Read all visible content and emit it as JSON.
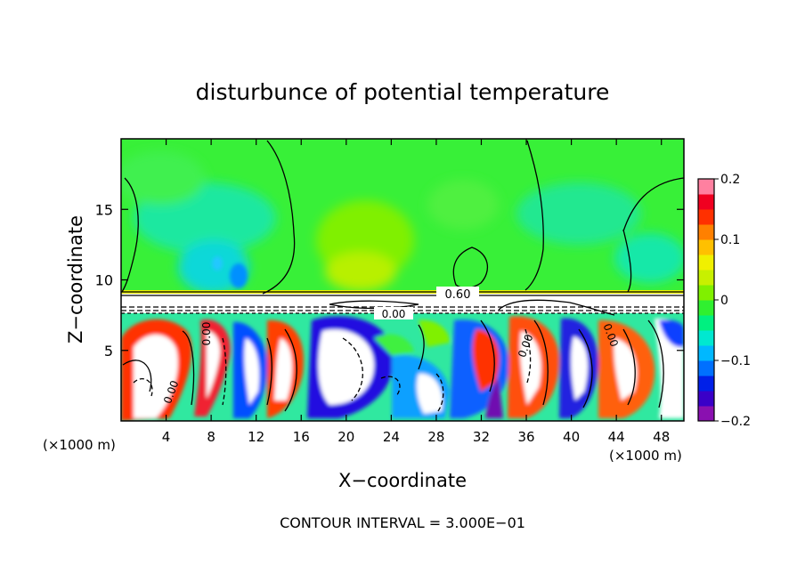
{
  "chart_data": {
    "type": "heatmap",
    "title": "disturbunce of potential temperature",
    "xlabel": "X−coordinate",
    "ylabel": "Z−coordinate",
    "x_unit": "(×1000 m)",
    "x_unit_right": "(×1000 m)",
    "footer": "CONTOUR INTERVAL = 3.000E−01",
    "xlim": [
      0,
      50
    ],
    "ylim": [
      0,
      20
    ],
    "x_ticks": [
      4,
      8,
      12,
      16,
      20,
      24,
      28,
      32,
      36,
      40,
      44,
      48
    ],
    "x_tick_labels": [
      "4",
      "8",
      "12",
      "16",
      "20",
      "24",
      "28",
      "32",
      "36",
      "40",
      "44",
      "48"
    ],
    "y_ticks": [
      5,
      10,
      15
    ],
    "y_tick_labels": [
      "5",
      "10",
      "15"
    ],
    "colorbar": {
      "range": [
        -0.2,
        0.2
      ],
      "ticks": [
        0.2,
        0.1,
        0,
        -0.1,
        -0.2
      ],
      "tick_labels": [
        "0.2",
        "0.1",
        "0",
        "−0.1",
        "−0.2"
      ],
      "colors": [
        "#8a10b0",
        "#3a00c8",
        "#0020e8",
        "#0070ff",
        "#00b8ff",
        "#00e8d0",
        "#00f080",
        "#30f030",
        "#80f000",
        "#c8f000",
        "#f0f000",
        "#ffc000",
        "#ff8000",
        "#ff3000",
        "#f00020",
        "#ff80a0"
      ]
    },
    "contour_labels": [
      "0.60",
      "0.00",
      "0.00",
      "0.00",
      "0.00",
      "0.00"
    ],
    "grid": false,
    "legend": "colorbar-right"
  }
}
